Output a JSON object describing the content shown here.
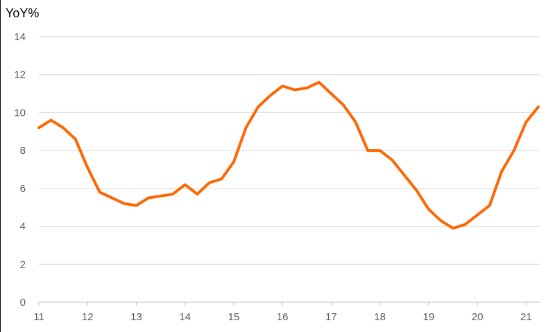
{
  "chart_data": {
    "type": "line",
    "title": "",
    "ylabel": "YoY%",
    "xlabel": "",
    "ylim": [
      0,
      14
    ],
    "y_ticks": [
      "0",
      "2",
      "4",
      "6",
      "8",
      "10",
      "12",
      "14"
    ],
    "xlim": [
      11,
      21.28
    ],
    "x_ticks": [
      "11",
      "12",
      "13",
      "14",
      "15",
      "16",
      "17",
      "18",
      "19",
      "20",
      "21"
    ],
    "grid": true,
    "legend": "none",
    "series": [
      {
        "color": "#ff6600",
        "x": [
          11.0,
          11.25,
          11.5,
          11.75,
          12.0,
          12.25,
          12.5,
          12.75,
          13.0,
          13.25,
          13.5,
          13.75,
          14.0,
          14.25,
          14.5,
          14.75,
          15.0,
          15.25,
          15.5,
          15.75,
          16.0,
          16.25,
          16.5,
          16.75,
          17.0,
          17.25,
          17.5,
          17.75,
          18.0,
          18.25,
          18.5,
          18.75,
          19.0,
          19.25,
          19.5,
          19.75,
          20.0,
          20.25,
          20.5,
          20.75,
          21.0,
          21.25
        ],
        "values": [
          9.2,
          9.6,
          9.2,
          8.6,
          7.1,
          5.8,
          5.5,
          5.2,
          5.1,
          5.5,
          5.6,
          5.7,
          6.2,
          5.7,
          6.3,
          6.5,
          7.4,
          9.2,
          10.3,
          10.9,
          11.4,
          11.2,
          11.3,
          11.6,
          11.0,
          10.4,
          9.5,
          8.0,
          8.0,
          7.5,
          6.7,
          5.9,
          4.9,
          4.3,
          3.9,
          4.1,
          4.6,
          5.1,
          6.9,
          8.0,
          9.5,
          10.3
        ]
      }
    ]
  }
}
